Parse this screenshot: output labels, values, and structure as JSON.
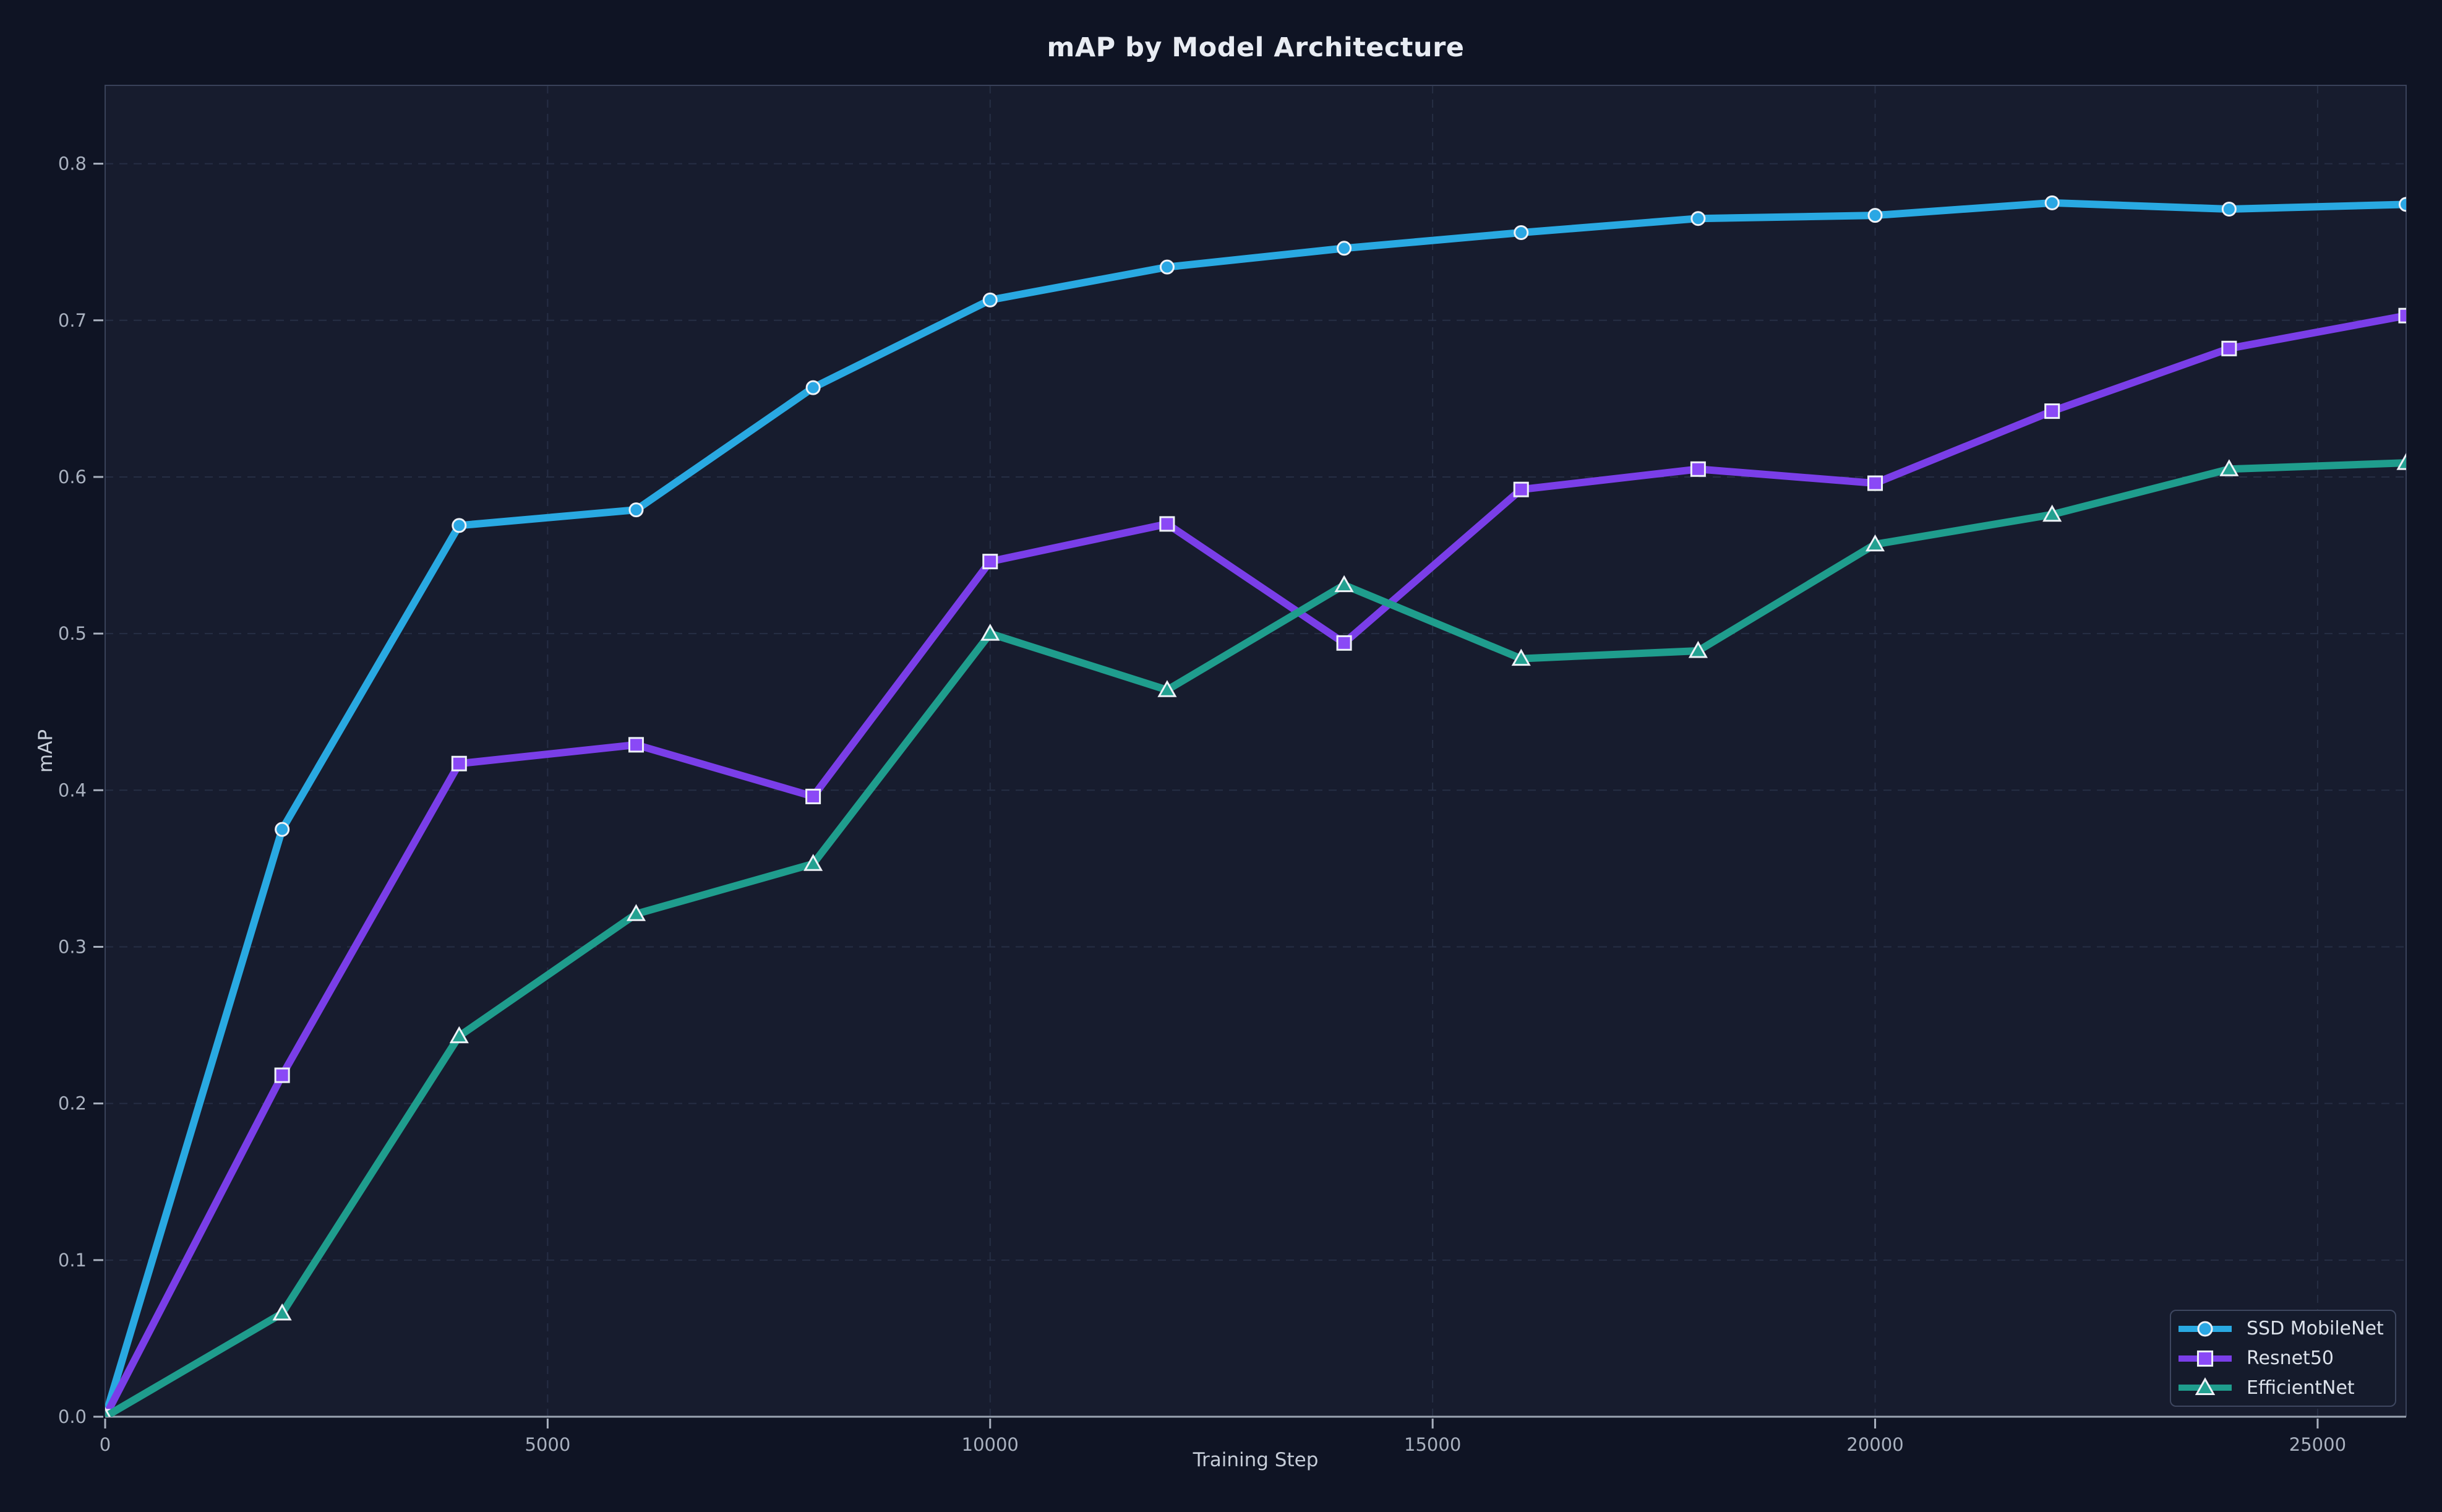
{
  "chart_data": {
    "type": "line",
    "title": "mAP by Model Architecture",
    "xlabel": "Training Step",
    "ylabel": "mAP",
    "x": [
      0,
      2000,
      4000,
      6000,
      8000,
      10000,
      12000,
      14000,
      16000,
      18000,
      20000,
      22000,
      24000,
      26000
    ],
    "series": [
      {
        "name": "SSD MobileNet",
        "marker": "circle",
        "color": "#29a9e2",
        "marker_fill": "#2aa7e4",
        "values": [
          0.0,
          0.375,
          0.569,
          0.579,
          0.657,
          0.713,
          0.734,
          0.746,
          0.756,
          0.765,
          0.767,
          0.775,
          0.771,
          0.774
        ]
      },
      {
        "name": "Resnet50",
        "marker": "square",
        "color": "#7a3ee8",
        "marker_fill": "#8a49f6",
        "values": [
          0.0,
          0.218,
          0.417,
          0.429,
          0.396,
          0.546,
          0.57,
          0.494,
          0.592,
          0.605,
          0.596,
          0.642,
          0.682,
          0.703
        ]
      },
      {
        "name": "EfficientNet",
        "marker": "triangle",
        "color": "#1f9d8d",
        "marker_fill": "#23a191",
        "values": [
          0.0,
          0.066,
          0.243,
          0.321,
          0.353,
          0.5,
          0.464,
          0.531,
          0.484,
          0.489,
          0.557,
          0.576,
          0.605,
          0.609
        ]
      }
    ],
    "xlim": [
      0,
      26000
    ],
    "ylim": [
      0,
      0.85
    ],
    "x_ticks": [
      {
        "v": 0,
        "label": "0"
      },
      {
        "v": 5000,
        "label": "5000"
      },
      {
        "v": 10000,
        "label": "10000"
      },
      {
        "v": 15000,
        "label": "15000"
      },
      {
        "v": 20000,
        "label": "20000"
      },
      {
        "v": 25000,
        "label": "25000"
      }
    ],
    "y_ticks": [
      {
        "v": 0.0,
        "label": "0.0"
      },
      {
        "v": 0.1,
        "label": "0.1"
      },
      {
        "v": 0.2,
        "label": "0.2"
      },
      {
        "v": 0.3,
        "label": "0.3"
      },
      {
        "v": 0.4,
        "label": "0.4"
      },
      {
        "v": 0.5,
        "label": "0.5"
      },
      {
        "v": 0.6,
        "label": "0.6"
      },
      {
        "v": 0.7,
        "label": "0.7"
      },
      {
        "v": 0.8,
        "label": "0.8"
      }
    ],
    "grid": true,
    "legend_position": "lower right"
  },
  "colors": {
    "background": "#0f1424",
    "plot_background": "#171c2e",
    "grid": "#262e44",
    "spine": "#39425a",
    "spine_bottom": "#9ba4b2",
    "tick": "#a9b1bf",
    "tick_label": "#a9b1bf",
    "axis_label": "#c6cdd8",
    "title": "#e8ecf3",
    "marker_edge": "#eef2f7",
    "legend_background": "#151b2c",
    "legend_border": "#3e4760",
    "legend_text": "#dbe1ea"
  }
}
